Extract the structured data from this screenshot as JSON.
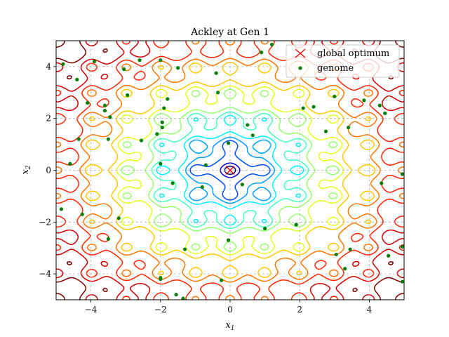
{
  "chart_data": {
    "type": "contour+scatter",
    "title": "Ackley at Gen 1",
    "xlabel_base": "x",
    "xlabel_sub": "1",
    "ylabel_base": "x",
    "ylabel_sub": "2",
    "xlim": [
      -5,
      5
    ],
    "ylim": [
      -5,
      5
    ],
    "xticks": [
      -4,
      -2,
      0,
      2,
      4
    ],
    "yticks": [
      -4,
      -2,
      0,
      2,
      4
    ],
    "xtick_labels": [
      "−4",
      "−2",
      "0",
      "2",
      "4"
    ],
    "ytick_labels": [
      "−4",
      "−2",
      "0",
      "2",
      "4"
    ],
    "grid": true,
    "legend_position": "upper right",
    "contour": {
      "function": "ackley",
      "levels": [
        1,
        2,
        3.5,
        4.5,
        5.5,
        6.5,
        7.5,
        8.5,
        9.5,
        10.5,
        11.5,
        12.5,
        13.5
      ],
      "colormap": "jet"
    },
    "global_optimum": {
      "name": "global optimum",
      "x": 0,
      "y": 0,
      "color": "#ff0000",
      "marker": "x"
    },
    "genome": {
      "name": "genome",
      "color": "#008000",
      "points": [
        [
          -4.8,
          4.1
        ],
        [
          -4.4,
          3.5
        ],
        [
          -3.9,
          4.2
        ],
        [
          -2.6,
          4.25
        ],
        [
          -2.0,
          4.25
        ],
        [
          -1.5,
          3.95
        ],
        [
          -3.05,
          3.9
        ],
        [
          -0.4,
          3.75
        ],
        [
          0.9,
          4.55
        ],
        [
          1.2,
          4.85
        ],
        [
          -4.1,
          2.6
        ],
        [
          -3.6,
          2.5
        ],
        [
          -3.6,
          2.3
        ],
        [
          -3.45,
          2.05
        ],
        [
          -2.95,
          2.9
        ],
        [
          -1.8,
          2.75
        ],
        [
          -0.35,
          3.0
        ],
        [
          -1.9,
          2.4
        ],
        [
          2.1,
          2.4
        ],
        [
          2.4,
          2.45
        ],
        [
          3.0,
          2.85
        ],
        [
          3.85,
          2.7
        ],
        [
          4.3,
          2.5
        ],
        [
          4.45,
          2.2
        ],
        [
          -1.95,
          1.85
        ],
        [
          -1.95,
          1.65
        ],
        [
          -2.1,
          1.4
        ],
        [
          -2.55,
          1.15
        ],
        [
          -3.5,
          1.2
        ],
        [
          -4.35,
          1.2
        ],
        [
          0.5,
          1.75
        ],
        [
          0.65,
          1.35
        ],
        [
          2.75,
          1.5
        ],
        [
          3.4,
          1.65
        ],
        [
          -0.05,
          1.05
        ],
        [
          -2.0,
          0.25
        ],
        [
          -0.7,
          0.2
        ],
        [
          -4.6,
          0.25
        ],
        [
          -1.65,
          -0.5
        ],
        [
          -0.8,
          -0.65
        ],
        [
          0.35,
          -0.55
        ],
        [
          4.35,
          -0.5
        ],
        [
          4.95,
          -0.15
        ],
        [
          -4.85,
          -1.5
        ],
        [
          -4.25,
          -1.7
        ],
        [
          -3.2,
          -1.85
        ],
        [
          -3.5,
          -2.65
        ],
        [
          1.0,
          -2.25
        ],
        [
          1.9,
          -2.1
        ],
        [
          -0.05,
          -2.7
        ],
        [
          -1.3,
          -3.05
        ],
        [
          3.05,
          -3.25
        ],
        [
          3.45,
          -3.05
        ],
        [
          4.55,
          -3.3
        ],
        [
          4.95,
          -2.95
        ],
        [
          3.3,
          -3.8
        ],
        [
          -2.0,
          -4.15
        ],
        [
          -2.0,
          -4.2
        ],
        [
          -0.25,
          -4.25
        ],
        [
          -1.55,
          -4.8
        ],
        [
          -1.35,
          -4.95
        ],
        [
          4.95,
          -4.3
        ]
      ]
    }
  }
}
